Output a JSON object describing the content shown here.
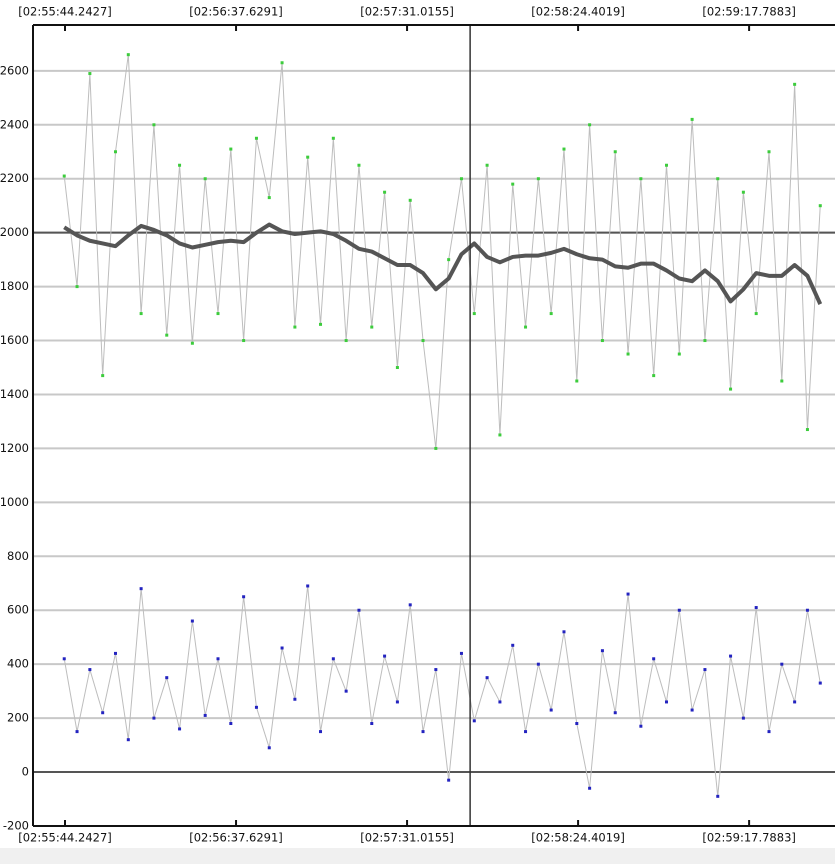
{
  "chart_data": {
    "type": "line",
    "xlim": [
      10534.25,
      10784.6
    ],
    "xticks": [
      {
        "value": 10544.2427,
        "label": "[02:55:44.2427]"
      },
      {
        "value": 10597.6291,
        "label": "[02:56:37.6291]"
      },
      {
        "value": 10651.0155,
        "label": "[02:57:31.0155]"
      },
      {
        "value": 10704.4019,
        "label": "[02:58:24.4019]"
      },
      {
        "value": 10757.7883,
        "label": "[02:59:17.7883]"
      }
    ],
    "ylim": [
      -200,
      2770
    ],
    "yticks": [
      -200,
      0,
      200,
      400,
      600,
      800,
      1000,
      1200,
      1400,
      1600,
      1800,
      2000,
      2200,
      2400,
      2600
    ],
    "grid": true,
    "reference_lines": [
      0,
      2000
    ],
    "cursor_x": 10670.7,
    "x": [
      10544,
      10548,
      10552,
      10556,
      10560,
      10564,
      10568,
      10572,
      10576,
      10580,
      10584,
      10588,
      10592,
      10596,
      10600,
      10604,
      10608,
      10612,
      10616,
      10620,
      10624,
      10628,
      10632,
      10636,
      10640,
      10644,
      10648,
      10652,
      10656,
      10660,
      10664,
      10668,
      10672,
      10676,
      10680,
      10684,
      10688,
      10692,
      10696,
      10700,
      10704,
      10708,
      10712,
      10716,
      10720,
      10724,
      10728,
      10732,
      10736,
      10740,
      10744,
      10748,
      10752,
      10756,
      10760,
      10764,
      10768,
      10772,
      10776,
      10780
    ],
    "series": [
      {
        "color": "#bdbdbd",
        "marker_color": "#3ccc3c",
        "markers": true,
        "width": 1,
        "values": [
          2210,
          1800,
          2590,
          1470,
          2300,
          2660,
          1700,
          2400,
          1620,
          2250,
          1590,
          2200,
          1700,
          2310,
          1600,
          2350,
          2130,
          2630,
          1650,
          2280,
          1660,
          2350,
          1600,
          2250,
          1650,
          2150,
          1500,
          2120,
          1600,
          1200,
          1900,
          2200,
          1700,
          2250,
          1250,
          2180,
          1650,
          2200,
          1700,
          2310,
          1450,
          2400,
          1600,
          2300,
          1550,
          2200,
          1470,
          2250,
          1550,
          2420,
          1600,
          2200,
          1420,
          2150,
          1700,
          2300,
          1450,
          2550,
          1270,
          2100
        ]
      },
      {
        "color": "#555555",
        "markers": false,
        "width": 4,
        "values": [
          2020,
          1990,
          1970,
          1960,
          1950,
          1990,
          2025,
          2010,
          1990,
          1960,
          1945,
          1955,
          1965,
          1970,
          1965,
          2000,
          2030,
          2005,
          1995,
          2000,
          2005,
          1995,
          1970,
          1940,
          1930,
          1905,
          1880,
          1880,
          1850,
          1790,
          1830,
          1920,
          1960,
          1910,
          1890,
          1910,
          1915,
          1915,
          1925,
          1940,
          1920,
          1905,
          1900,
          1875,
          1870,
          1885,
          1885,
          1860,
          1830,
          1820,
          1860,
          1820,
          1745,
          1790,
          1850,
          1840,
          1840,
          1880,
          1840,
          1735
        ]
      },
      {
        "color": "#bdbdbd",
        "marker_color": "#2323c0",
        "markers": true,
        "width": 1,
        "values": [
          420,
          150,
          380,
          220,
          440,
          120,
          680,
          200,
          350,
          160,
          560,
          210,
          420,
          180,
          650,
          240,
          90,
          460,
          270,
          690,
          150,
          420,
          300,
          600,
          180,
          430,
          260,
          620,
          150,
          380,
          -30,
          440,
          190,
          350,
          260,
          470,
          150,
          400,
          230,
          520,
          180,
          -60,
          450,
          220,
          660,
          170,
          420,
          260,
          600,
          230,
          380,
          -90,
          430,
          200,
          610,
          150,
          400,
          260,
          600,
          330
        ]
      }
    ]
  }
}
